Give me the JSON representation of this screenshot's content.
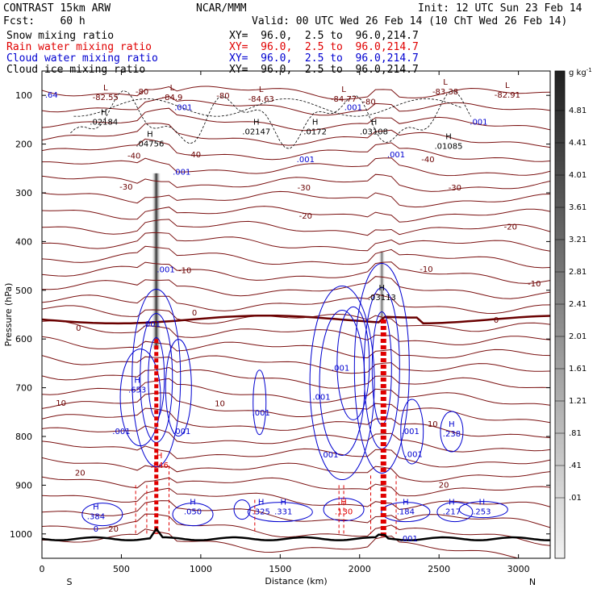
{
  "header": {
    "line1_left": "CONTRAST 15km ARW",
    "line1_mid": "NCAR/MMM",
    "line1_right": "Init: 12 UTC Sun 23 Feb 14",
    "line2_left": "Fcst:    60 h",
    "line2_right": "Valid: 00 UTC Wed 26 Feb 14 (10 ChT Wed 26 Feb 14)"
  },
  "legend": [
    {
      "name": "Snow mixing ratio",
      "xy": "XY=  96.0,  2.5 to  96.0,214.7",
      "color": "#000000"
    },
    {
      "name": "Rain water mixing ratio",
      "xy": "XY=  96.0,  2.5 to  96.0,214.7",
      "color": "#e00000"
    },
    {
      "name": "Cloud water mixing ratio",
      "xy": "XY=  96.0,  2.5 to  96.0,214.7",
      "color": "#0000d0"
    },
    {
      "name": "Cloud ice mixing ratio",
      "xy": "XY=  96.0,  2.5 to  96.0,214.7",
      "color": "#000000"
    }
  ],
  "chart_data": {
    "type": "cross-section",
    "xlabel": "Distance (km)",
    "ylabel": "Pressure (hPa)",
    "xlim": [
      0,
      3200
    ],
    "ylim": [
      1050,
      50
    ],
    "x_ticks": [
      0,
      500,
      1000,
      1500,
      2000,
      2500,
      3000
    ],
    "y_ticks": [
      100,
      200,
      300,
      400,
      500,
      600,
      700,
      800,
      900,
      1000
    ],
    "end_labels": {
      "left": "S",
      "right": "N"
    },
    "colorbar": {
      "unit": "g kg",
      "unit_exp": "-1",
      "labels": [
        "4.81",
        "4.41",
        "4.01",
        "3.61",
        "3.21",
        "2.81",
        "2.41",
        "2.01",
        "1.61",
        "1.21",
        ".81",
        ".41",
        ".01"
      ]
    },
    "temperature_labels": [
      {
        "text": "-80",
        "x": 630,
        "p": 93
      },
      {
        "text": "-80",
        "x": 1140,
        "p": 101
      },
      {
        "text": "-80",
        "x": 2060,
        "p": 114
      },
      {
        "text": "-40",
        "x": 580,
        "p": 225
      },
      {
        "text": "-40",
        "x": 960,
        "p": 222
      },
      {
        "text": "-40",
        "x": 2430,
        "p": 232
      },
      {
        "text": "-30",
        "x": 530,
        "p": 288
      },
      {
        "text": "-30",
        "x": 1650,
        "p": 290
      },
      {
        "text": "-30",
        "x": 2600,
        "p": 290
      },
      {
        "text": "-20",
        "x": 1660,
        "p": 348
      },
      {
        "text": "-20",
        "x": 2950,
        "p": 370
      },
      {
        "text": "-10",
        "x": 900,
        "p": 460
      },
      {
        "text": "-10",
        "x": 2420,
        "p": 457
      },
      {
        "text": "-10",
        "x": 3100,
        "p": 487
      },
      {
        "text": "0",
        "x": 230,
        "p": 578
      },
      {
        "text": "0",
        "x": 960,
        "p": 547
      },
      {
        "text": "0",
        "x": 2860,
        "p": 562
      },
      {
        "text": "10",
        "x": 120,
        "p": 732
      },
      {
        "text": "10",
        "x": 1120,
        "p": 733
      },
      {
        "text": "10",
        "x": 2460,
        "p": 775
      },
      {
        "text": "20",
        "x": 240,
        "p": 875
      },
      {
        "text": "20",
        "x": 2530,
        "p": 900
      },
      {
        "text": "20",
        "x": 450,
        "p": 990
      }
    ],
    "extrema_labels": [
      {
        "mark": "L",
        "value": "-82.55",
        "x": 400,
        "p": 100
      },
      {
        "mark": "L",
        "value": "-84.9",
        "x": 820,
        "p": 100
      },
      {
        "mark": "L",
        "value": "-84.63",
        "x": 1380,
        "p": 103
      },
      {
        "mark": "L",
        "value": "-84.77",
        "x": 1900,
        "p": 103
      },
      {
        "mark": "L",
        "value": "-83.38",
        "x": 2540,
        "p": 88
      },
      {
        "mark": "L",
        "value": "-82.91",
        "x": 2930,
        "p": 95
      },
      {
        "mark": "H",
        "value": ".02184",
        "x": 390,
        "p": 150
      },
      {
        "mark": "H",
        "value": ".02147",
        "x": 1350,
        "p": 170
      },
      {
        "mark": "H",
        "value": ".0172",
        "x": 1720,
        "p": 170
      },
      {
        "mark": "H",
        "value": ".03108",
        "x": 2090,
        "p": 170
      },
      {
        "mark": "H",
        "value": ".01085",
        "x": 2560,
        "p": 200
      },
      {
        "mark": "H",
        "value": ".04756",
        "x": 680,
        "p": 195
      },
      {
        "mark": "H",
        "value": ".03113",
        "x": 2140,
        "p": 510
      },
      {
        "mark": "H",
        "value": ".653",
        "x": 600,
        "p": 700
      },
      {
        "mark": "H",
        "value": ".846",
        "x": 740,
        "p": 855
      },
      {
        "mark": "H",
        "value": ".238",
        "x": 2580,
        "p": 790
      },
      {
        "mark": "H",
        "value": ".384",
        "x": 340,
        "p": 960
      },
      {
        "mark": "H",
        "value": ".050",
        "x": 950,
        "p": 950
      },
      {
        "mark": "H",
        "value": ".325",
        "x": 1380,
        "p": 950
      },
      {
        "mark": "H",
        "value": ".331",
        "x": 1520,
        "p": 950
      },
      {
        "mark": "H",
        "value": ".130",
        "x": 1900,
        "p": 950
      },
      {
        "mark": "H",
        "value": ".184",
        "x": 2290,
        "p": 950
      },
      {
        "mark": "H",
        "value": ".217",
        "x": 2580,
        "p": 950
      },
      {
        "mark": "H",
        "value": ".253",
        "x": 2770,
        "p": 950
      }
    ],
    "small_labels": [
      {
        "text": ".001",
        "x": 890,
        "p": 125
      },
      {
        "text": ".001",
        "x": 1960,
        "p": 125
      },
      {
        "text": ".001",
        "x": 2750,
        "p": 155
      },
      {
        "text": ".001",
        "x": 2230,
        "p": 222
      },
      {
        "text": ".001",
        "x": 1660,
        "p": 232
      },
      {
        "text": ".001",
        "x": 880,
        "p": 258
      },
      {
        "text": ".001",
        "x": 780,
        "p": 458
      },
      {
        "text": ".001",
        "x": 1380,
        "p": 752
      },
      {
        "text": ".001",
        "x": 690,
        "p": 570
      },
      {
        "text": ".001",
        "x": 1880,
        "p": 660
      },
      {
        "text": ".001",
        "x": 1760,
        "p": 720
      },
      {
        "text": ".001",
        "x": 2320,
        "p": 790
      },
      {
        "text": ".001",
        "x": 2340,
        "p": 837
      },
      {
        "text": ".001",
        "x": 1810,
        "p": 838
      },
      {
        "text": ".001",
        "x": 500,
        "p": 790
      },
      {
        "text": ".001",
        "x": 880,
        "p": 790
      },
      {
        "text": ".001",
        "x": 2310,
        "p": 1010
      },
      {
        "text": ".64",
        "x": 60,
        "p": 100
      },
      {
        "text": "0",
        "x": 340,
        "p": 990
      }
    ]
  }
}
